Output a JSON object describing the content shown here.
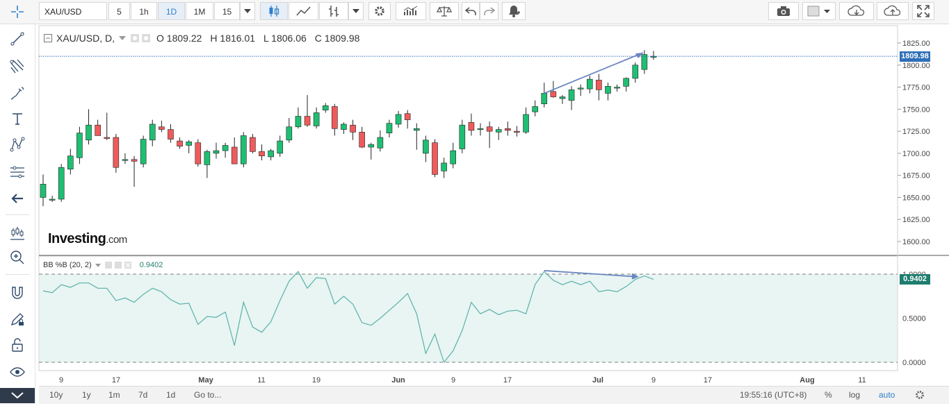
{
  "toolbar": {
    "symbol": "XAU/USD",
    "intervals": [
      "5",
      "1h",
      "1D",
      "1M",
      "15"
    ],
    "active_interval": "1D"
  },
  "legend": {
    "symbol_label": "XAU/USD, D,",
    "open": "O 1809.22",
    "high": "H 1816.01",
    "low": "L 1806.06",
    "close": "C 1809.98"
  },
  "indicator": {
    "label": "BB %B (20, 2)",
    "value": "0.9402"
  },
  "watermark": {
    "brand": "Investing",
    "suffix": ".com"
  },
  "price_badges": {
    "last": "1809.98",
    "bb": "0.9402"
  },
  "bottombar": {
    "ranges": [
      "10y",
      "1y",
      "1m",
      "7d",
      "1d"
    ],
    "goto": "Go to...",
    "clock": "19:55:16 (UTC+8)",
    "percent": "%",
    "log": "log",
    "auto": "auto"
  },
  "colors": {
    "up": "#1fbf73",
    "down": "#ef5b5b",
    "bb_line": "#5ab0a8",
    "bb_fill": "#e8f5f3",
    "arrow": "#6b86c2",
    "accent": "#2f80c8"
  },
  "chart_data": [
    {
      "type": "candlestick",
      "title": "",
      "y_ticks": [
        "1825.00",
        "1800.00",
        "1775.00",
        "1750.00",
        "1725.00",
        "1700.00",
        "1675.00",
        "1650.00",
        "1625.00",
        "1600.00"
      ],
      "x_ticks": [
        "9",
        "17",
        "May",
        "11",
        "19",
        "Jun",
        "9",
        "17",
        "Jul",
        "9",
        "17",
        "Aug",
        "11"
      ],
      "ylim": [
        1588,
        1835
      ],
      "last_price": 1809.98,
      "candles": [
        {
          "o": 1650,
          "h": 1676,
          "l": 1640,
          "c": 1665
        },
        {
          "o": 1647,
          "h": 1652,
          "l": 1645,
          "c": 1648
        },
        {
          "o": 1648,
          "h": 1688,
          "l": 1645,
          "c": 1684
        },
        {
          "o": 1682,
          "h": 1705,
          "l": 1676,
          "c": 1697
        },
        {
          "o": 1695,
          "h": 1730,
          "l": 1688,
          "c": 1723
        },
        {
          "o": 1715,
          "h": 1750,
          "l": 1710,
          "c": 1732
        },
        {
          "o": 1732,
          "h": 1738,
          "l": 1720,
          "c": 1720
        },
        {
          "o": 1718,
          "h": 1746,
          "l": 1715,
          "c": 1717
        },
        {
          "o": 1718,
          "h": 1722,
          "l": 1678,
          "c": 1684
        },
        {
          "o": 1693,
          "h": 1700,
          "l": 1688,
          "c": 1693
        },
        {
          "o": 1693,
          "h": 1697,
          "l": 1662,
          "c": 1691
        },
        {
          "o": 1688,
          "h": 1720,
          "l": 1684,
          "c": 1716
        },
        {
          "o": 1715,
          "h": 1738,
          "l": 1708,
          "c": 1733
        },
        {
          "o": 1730,
          "h": 1737,
          "l": 1724,
          "c": 1727
        },
        {
          "o": 1727,
          "h": 1733,
          "l": 1712,
          "c": 1716
        },
        {
          "o": 1714,
          "h": 1718,
          "l": 1705,
          "c": 1708
        },
        {
          "o": 1709,
          "h": 1715,
          "l": 1700,
          "c": 1713
        },
        {
          "o": 1712,
          "h": 1716,
          "l": 1685,
          "c": 1688
        },
        {
          "o": 1687,
          "h": 1704,
          "l": 1672,
          "c": 1702
        },
        {
          "o": 1700,
          "h": 1712,
          "l": 1694,
          "c": 1703
        },
        {
          "o": 1703,
          "h": 1712,
          "l": 1695,
          "c": 1709
        },
        {
          "o": 1707,
          "h": 1718,
          "l": 1688,
          "c": 1688
        },
        {
          "o": 1688,
          "h": 1724,
          "l": 1684,
          "c": 1720
        },
        {
          "o": 1718,
          "h": 1722,
          "l": 1700,
          "c": 1702
        },
        {
          "o": 1702,
          "h": 1710,
          "l": 1692,
          "c": 1697
        },
        {
          "o": 1696,
          "h": 1705,
          "l": 1692,
          "c": 1703
        },
        {
          "o": 1700,
          "h": 1720,
          "l": 1696,
          "c": 1714
        },
        {
          "o": 1715,
          "h": 1740,
          "l": 1712,
          "c": 1730
        },
        {
          "o": 1730,
          "h": 1752,
          "l": 1728,
          "c": 1742
        },
        {
          "o": 1742,
          "h": 1766,
          "l": 1730,
          "c": 1732
        },
        {
          "o": 1731,
          "h": 1752,
          "l": 1728,
          "c": 1746
        },
        {
          "o": 1749,
          "h": 1757,
          "l": 1746,
          "c": 1754
        },
        {
          "o": 1753,
          "h": 1756,
          "l": 1720,
          "c": 1728
        },
        {
          "o": 1727,
          "h": 1735,
          "l": 1722,
          "c": 1733
        },
        {
          "o": 1732,
          "h": 1738,
          "l": 1715,
          "c": 1724
        },
        {
          "o": 1724,
          "h": 1730,
          "l": 1706,
          "c": 1707
        },
        {
          "o": 1707,
          "h": 1712,
          "l": 1693,
          "c": 1710
        },
        {
          "o": 1706,
          "h": 1726,
          "l": 1702,
          "c": 1718
        },
        {
          "o": 1723,
          "h": 1738,
          "l": 1718,
          "c": 1734
        },
        {
          "o": 1733,
          "h": 1748,
          "l": 1729,
          "c": 1744
        },
        {
          "o": 1745,
          "h": 1749,
          "l": 1728,
          "c": 1738
        },
        {
          "o": 1726,
          "h": 1734,
          "l": 1704,
          "c": 1728
        },
        {
          "o": 1700,
          "h": 1720,
          "l": 1690,
          "c": 1715
        },
        {
          "o": 1712,
          "h": 1716,
          "l": 1673,
          "c": 1676
        },
        {
          "o": 1680,
          "h": 1695,
          "l": 1672,
          "c": 1689
        },
        {
          "o": 1688,
          "h": 1712,
          "l": 1683,
          "c": 1703
        },
        {
          "o": 1705,
          "h": 1738,
          "l": 1700,
          "c": 1732
        },
        {
          "o": 1735,
          "h": 1745,
          "l": 1720,
          "c": 1726
        },
        {
          "o": 1728,
          "h": 1734,
          "l": 1720,
          "c": 1728
        },
        {
          "o": 1730,
          "h": 1736,
          "l": 1706,
          "c": 1725
        },
        {
          "o": 1724,
          "h": 1730,
          "l": 1715,
          "c": 1727
        },
        {
          "o": 1728,
          "h": 1736,
          "l": 1720,
          "c": 1726
        },
        {
          "o": 1725,
          "h": 1731,
          "l": 1719,
          "c": 1724
        },
        {
          "o": 1724,
          "h": 1752,
          "l": 1722,
          "c": 1744
        },
        {
          "o": 1747,
          "h": 1760,
          "l": 1742,
          "c": 1753
        },
        {
          "o": 1756,
          "h": 1780,
          "l": 1752,
          "c": 1768
        },
        {
          "o": 1770,
          "h": 1782,
          "l": 1763,
          "c": 1764
        },
        {
          "o": 1762,
          "h": 1766,
          "l": 1756,
          "c": 1764
        },
        {
          "o": 1760,
          "h": 1776,
          "l": 1749,
          "c": 1772
        },
        {
          "o": 1773,
          "h": 1778,
          "l": 1765,
          "c": 1774
        },
        {
          "o": 1773,
          "h": 1788,
          "l": 1768,
          "c": 1784
        },
        {
          "o": 1783,
          "h": 1790,
          "l": 1760,
          "c": 1772
        },
        {
          "o": 1768,
          "h": 1780,
          "l": 1760,
          "c": 1776
        },
        {
          "o": 1774,
          "h": 1778,
          "l": 1770,
          "c": 1775
        },
        {
          "o": 1776,
          "h": 1786,
          "l": 1770,
          "c": 1785
        },
        {
          "o": 1785,
          "h": 1803,
          "l": 1780,
          "c": 1800
        },
        {
          "o": 1795,
          "h": 1817,
          "l": 1790,
          "c": 1812
        },
        {
          "o": 1809.22,
          "h": 1816.01,
          "l": 1806.06,
          "c": 1809.98
        }
      ]
    },
    {
      "type": "line",
      "title": "BB %B (20, 2)",
      "y_ticks": [
        "1.0000",
        "0.5000",
        "0.0000"
      ],
      "ylim": [
        -0.05,
        1.2
      ],
      "values": [
        0.81,
        0.79,
        0.88,
        0.85,
        0.9,
        0.9,
        0.84,
        0.84,
        0.7,
        0.73,
        0.68,
        0.77,
        0.84,
        0.8,
        0.71,
        0.66,
        0.67,
        0.43,
        0.52,
        0.51,
        0.57,
        0.19,
        0.68,
        0.4,
        0.34,
        0.46,
        0.7,
        0.92,
        1.03,
        0.84,
        0.96,
        0.95,
        0.66,
        0.75,
        0.66,
        0.45,
        0.42,
        0.5,
        0.59,
        0.68,
        0.78,
        0.55,
        0.1,
        0.32,
        0.0,
        0.13,
        0.36,
        0.68,
        0.55,
        0.6,
        0.54,
        0.58,
        0.59,
        0.55,
        0.88,
        1.03,
        0.93,
        0.88,
        0.92,
        0.88,
        0.92,
        0.8,
        0.82,
        0.8,
        0.86,
        0.94,
        0.98,
        0.94
      ]
    }
  ]
}
